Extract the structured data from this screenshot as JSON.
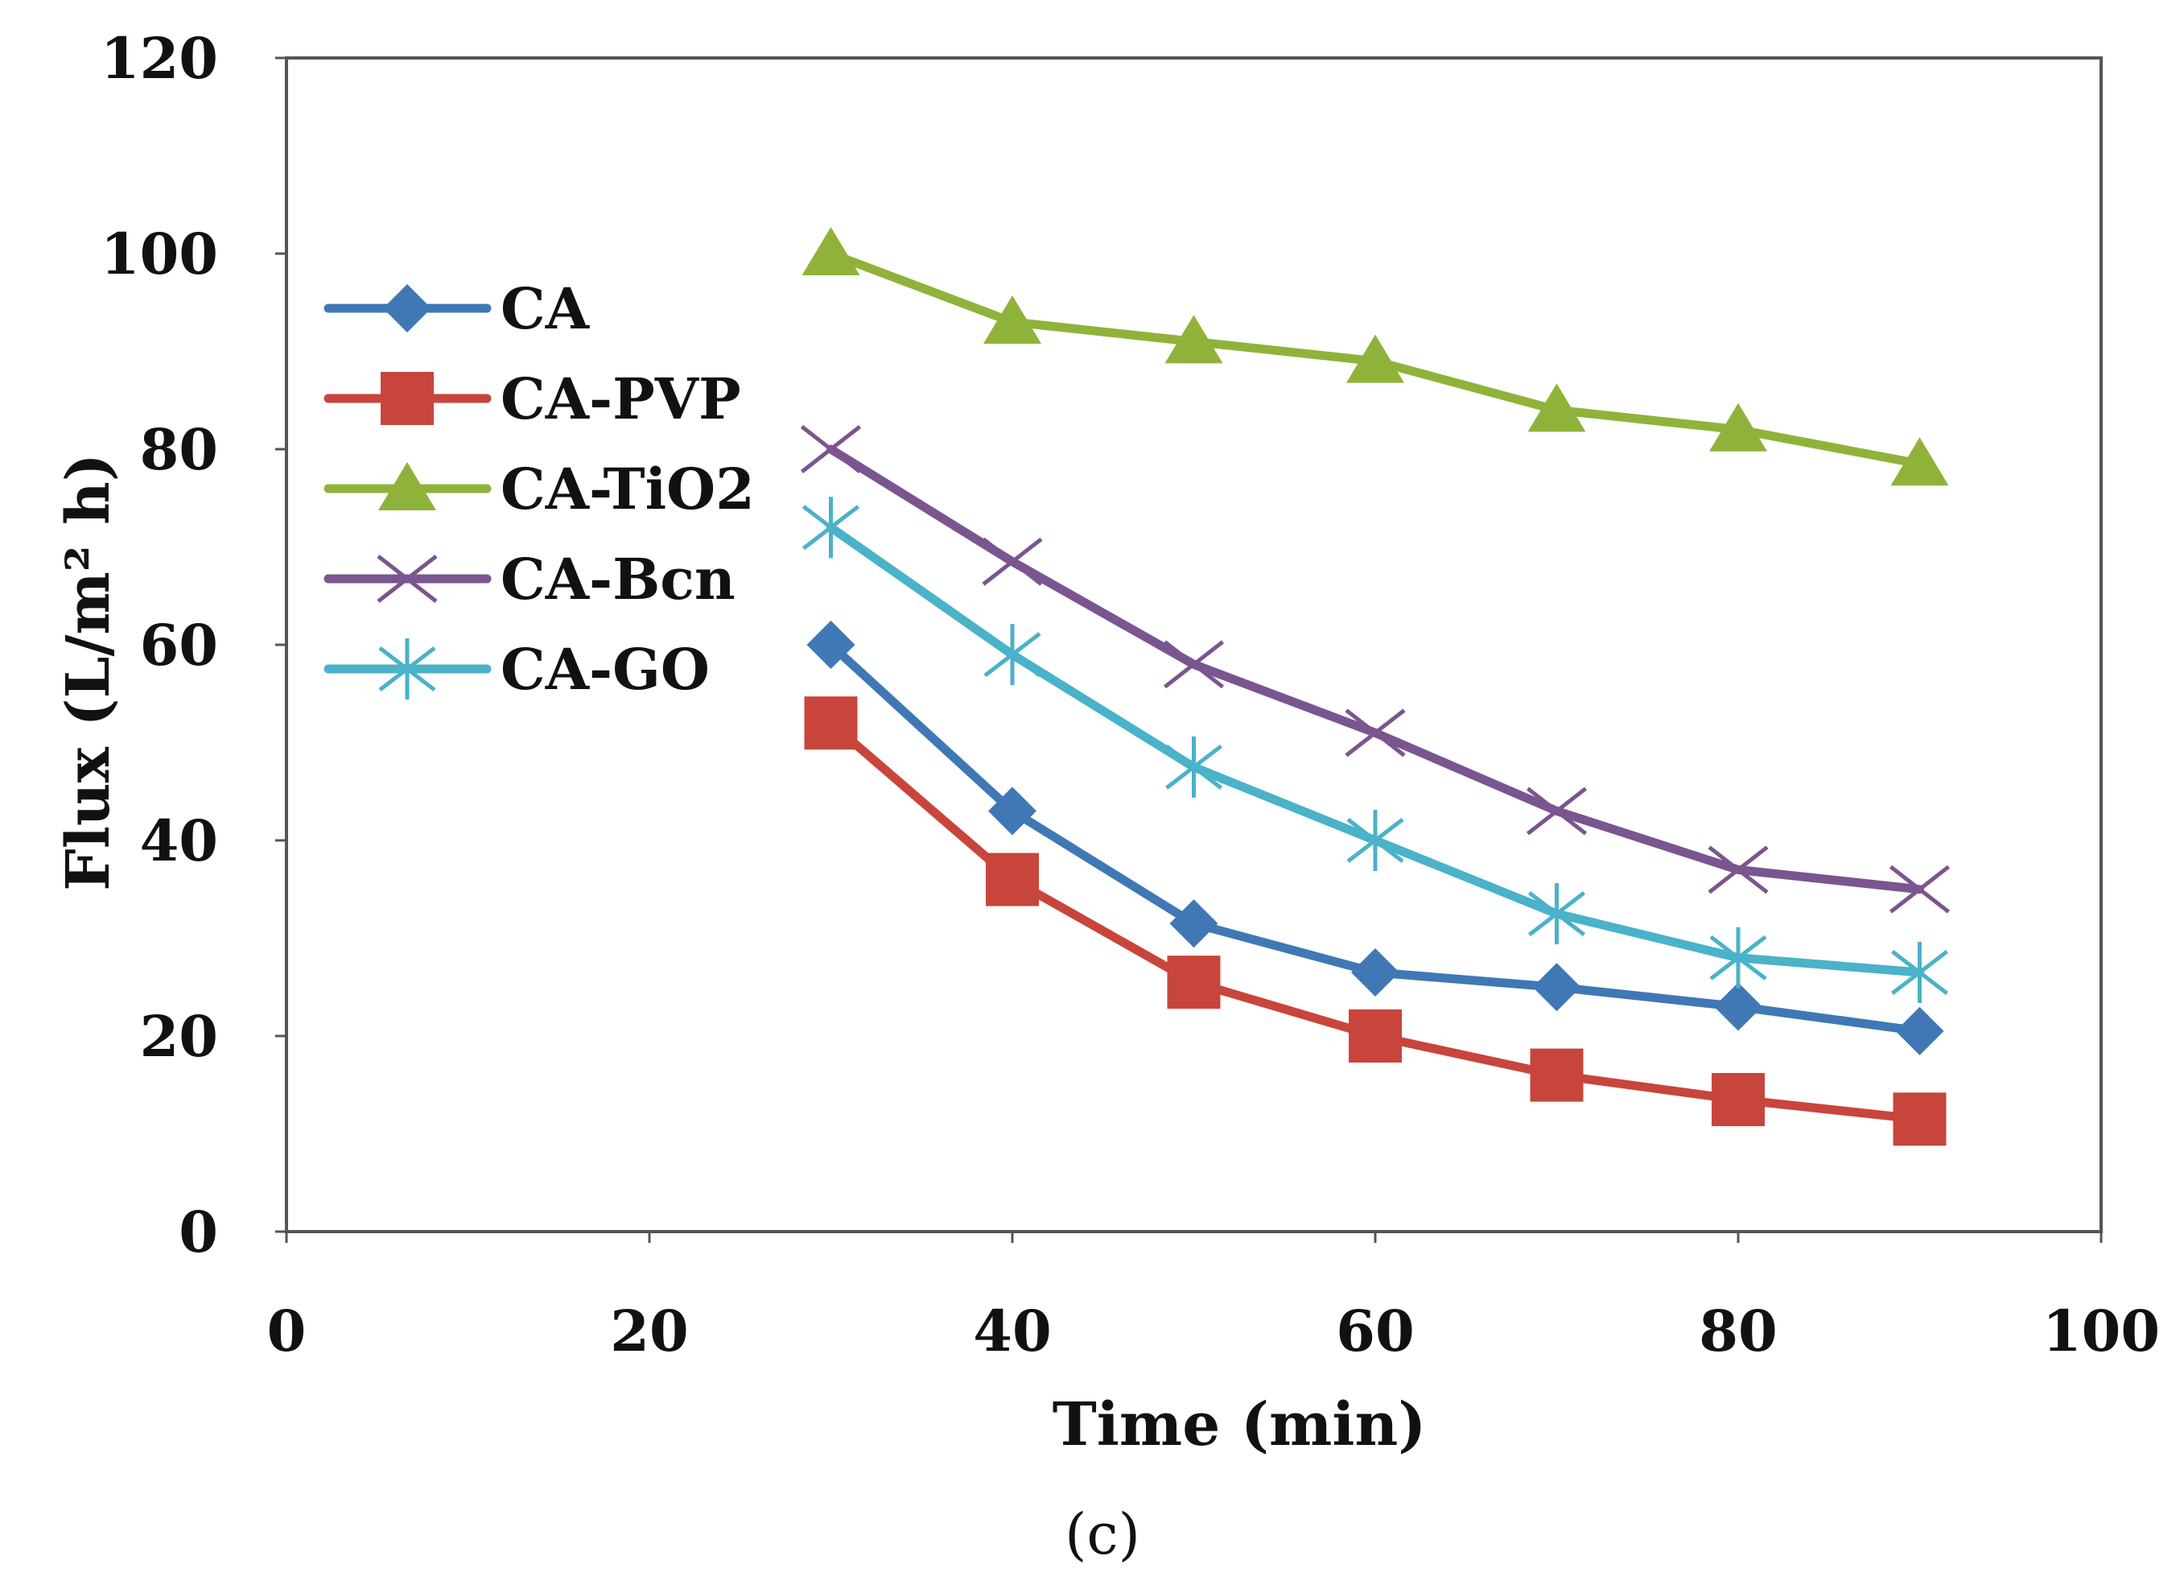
{
  "chart_data": {
    "type": "line",
    "title": "",
    "caption": "(c)",
    "xlabel": "Time (min)",
    "ylabel": "Flux (L/m² h)",
    "xlim": [
      0,
      100
    ],
    "ylim": [
      0,
      120
    ],
    "xticks": [
      "0",
      "20",
      "40",
      "60",
      "80",
      "100"
    ],
    "yticks": [
      "0",
      "20",
      "40",
      "60",
      "80",
      "100",
      "120"
    ],
    "grid": false,
    "legend_position": "top-left",
    "x": [
      30,
      40,
      50,
      60,
      70,
      80,
      90
    ],
    "series": [
      {
        "name": "CA",
        "color": "#3f78b5",
        "marker": "diamond",
        "values": [
          60,
          43,
          31.5,
          26.5,
          25,
          23,
          20.5
        ]
      },
      {
        "name": "CA-PVP",
        "color": "#c8453c",
        "marker": "square",
        "values": [
          52,
          36,
          25.5,
          20,
          16,
          13.5,
          11.5
        ]
      },
      {
        "name": "CA-TiO2",
        "color": "#8fb33a",
        "marker": "triangle",
        "values": [
          100,
          93,
          91,
          89,
          84,
          82,
          78.5
        ]
      },
      {
        "name": "CA-Bcn",
        "color": "#7a5590",
        "marker": "x",
        "values": [
          80,
          68.5,
          58,
          51,
          43,
          37,
          35
        ]
      },
      {
        "name": "CA-GO",
        "color": "#4ab2c9",
        "marker": "star",
        "values": [
          72,
          59,
          47.5,
          40,
          32.5,
          28,
          26.5
        ]
      }
    ]
  }
}
